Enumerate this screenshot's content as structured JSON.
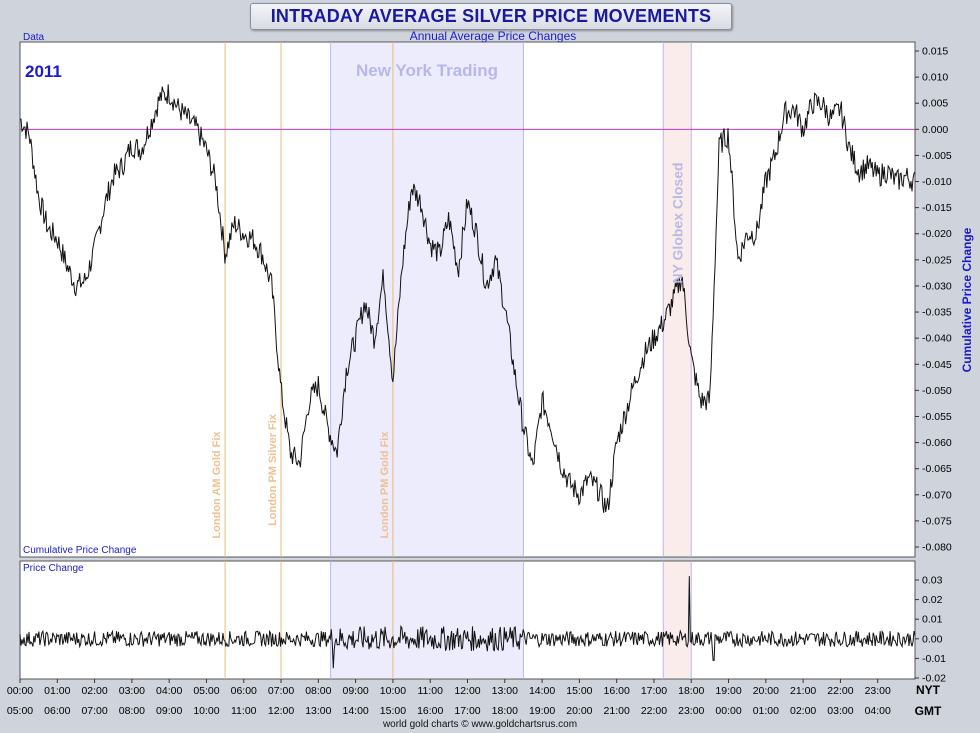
{
  "title": "INTRADAY AVERAGE SILVER PRICE MOVEMENTS",
  "subtitle": "Annual Average Price Changes",
  "data_label": "Data",
  "year_label": "2011",
  "cum_panel_label": "Cumulative Price Change",
  "right_axis_label": "Cumulative Price Change",
  "lower_panel_label": "Price Change",
  "credit": "world gold charts © www.goldchartsrus.com",
  "tz_top": "NYT",
  "tz_bottom": "GMT",
  "colors": {
    "title": "#1a1aa0",
    "label_blue": "#1a1acc",
    "zero_line": "#cc33cc",
    "fix_line": "#f0b87a",
    "ny_band": "#ececfd",
    "globex_band": "#fbecec",
    "band_edge": "#b8b8ee",
    "series": "#111111"
  },
  "chart_data": [
    {
      "type": "line",
      "series_name": "Cumulative Price Change",
      "x_unit": "hours since 00:00 NYT",
      "xlim": [
        0,
        24
      ],
      "ylim": [
        -0.08,
        0.015
      ],
      "yticks": [
        0.015,
        0.01,
        0.005,
        0.0,
        -0.005,
        -0.01,
        -0.015,
        -0.02,
        -0.025,
        -0.03,
        -0.035,
        -0.04,
        -0.045,
        -0.05,
        -0.055,
        -0.06,
        -0.065,
        -0.07,
        -0.075,
        -0.08
      ],
      "ytick_labels": [
        "0.015",
        "0.010",
        "0.005",
        "0.000",
        "-0.005",
        "-0.010",
        "-0.015",
        "-0.020",
        "-0.025",
        "-0.030",
        "-0.035",
        "-0.040",
        "-0.045",
        "-0.050",
        "-0.055",
        "-0.060",
        "-0.065",
        "-0.070",
        "-0.075",
        "-0.080"
      ],
      "x": [
        0.0,
        0.25,
        0.5,
        0.75,
        1.0,
        1.25,
        1.5,
        1.75,
        2.0,
        2.25,
        2.5,
        2.75,
        3.0,
        3.25,
        3.5,
        3.75,
        4.0,
        4.25,
        4.5,
        4.75,
        5.0,
        5.25,
        5.5,
        5.75,
        6.0,
        6.25,
        6.5,
        6.75,
        7.0,
        7.25,
        7.5,
        7.75,
        8.0,
        8.25,
        8.5,
        8.75,
        9.0,
        9.25,
        9.5,
        9.75,
        10.0,
        10.25,
        10.5,
        10.75,
        11.0,
        11.25,
        11.5,
        11.75,
        12.0,
        12.25,
        12.5,
        12.75,
        13.0,
        13.25,
        13.5,
        13.75,
        14.0,
        14.25,
        14.5,
        14.75,
        15.0,
        15.25,
        15.5,
        15.75,
        16.0,
        16.25,
        16.5,
        16.75,
        17.0,
        17.25,
        17.5,
        17.75,
        18.0,
        18.25,
        18.5,
        18.75,
        19.0,
        19.25,
        19.5,
        19.75,
        20.0,
        20.25,
        20.5,
        20.75,
        21.0,
        21.25,
        21.5,
        21.75,
        22.0,
        22.25,
        22.5,
        22.75,
        23.0,
        23.25,
        23.5,
        23.75,
        24.0
      ],
      "y": [
        0.002,
        -0.001,
        -0.013,
        -0.019,
        -0.021,
        -0.026,
        -0.03,
        -0.029,
        -0.023,
        -0.015,
        -0.009,
        -0.007,
        -0.003,
        -0.004,
        0.001,
        0.006,
        0.007,
        0.004,
        0.002,
        0.0,
        -0.004,
        -0.01,
        -0.024,
        -0.018,
        -0.02,
        -0.021,
        -0.024,
        -0.03,
        -0.05,
        -0.062,
        -0.064,
        -0.052,
        -0.049,
        -0.057,
        -0.062,
        -0.046,
        -0.04,
        -0.033,
        -0.04,
        -0.028,
        -0.048,
        -0.026,
        -0.011,
        -0.014,
        -0.022,
        -0.024,
        -0.017,
        -0.027,
        -0.014,
        -0.02,
        -0.03,
        -0.025,
        -0.034,
        -0.046,
        -0.057,
        -0.065,
        -0.052,
        -0.057,
        -0.064,
        -0.068,
        -0.07,
        -0.067,
        -0.069,
        -0.073,
        -0.06,
        -0.054,
        -0.048,
        -0.043,
        -0.04,
        -0.037,
        -0.033,
        -0.028,
        -0.044,
        -0.052,
        -0.052,
        -0.003,
        -0.001,
        -0.025,
        -0.02,
        -0.02,
        -0.01,
        -0.005,
        0.003,
        0.004,
        0.0,
        0.005,
        0.005,
        0.002,
        0.004,
        -0.004,
        -0.008,
        -0.007,
        -0.009,
        -0.008,
        -0.01,
        -0.009,
        -0.01
      ]
    },
    {
      "type": "line",
      "series_name": "Price Change",
      "x_unit": "hours since 00:00 NYT",
      "xlim": [
        0,
        24
      ],
      "ylim": [
        -0.02,
        0.04
      ],
      "yticks": [
        0.03,
        0.02,
        0.01,
        0.0,
        -0.01,
        -0.02
      ],
      "ytick_labels": [
        "0.03",
        "0.02",
        "0.01",
        "0.00",
        "-0.01",
        "-0.02"
      ],
      "spikes": [
        {
          "x": 8.4,
          "y": -0.015
        },
        {
          "x": 17.95,
          "y": 0.032
        },
        {
          "x": 18.6,
          "y": -0.011
        }
      ],
      "typical_amplitude": 0.004
    }
  ],
  "x_axis": {
    "nyt_labels": [
      "00:00",
      "01:00",
      "02:00",
      "03:00",
      "04:00",
      "05:00",
      "06:00",
      "07:00",
      "08:00",
      "09:00",
      "10:00",
      "11:00",
      "12:00",
      "13:00",
      "14:00",
      "15:00",
      "16:00",
      "17:00",
      "18:00",
      "19:00",
      "20:00",
      "21:00",
      "22:00",
      "23:00"
    ],
    "gmt_labels": [
      "05:00",
      "06:00",
      "07:00",
      "08:00",
      "09:00",
      "10:00",
      "11:00",
      "12:00",
      "13:00",
      "14:00",
      "15:00",
      "16:00",
      "17:00",
      "18:00",
      "19:00",
      "20:00",
      "21:00",
      "22:00",
      "23:00",
      "00:00",
      "01:00",
      "02:00",
      "03:00",
      "04:00"
    ]
  },
  "annotations": {
    "ny_trading": {
      "label": "New York Trading",
      "start": 8.33,
      "end": 13.5
    },
    "globex_closed": {
      "label": "NY Globex Closed",
      "start": 17.25,
      "end": 18.0
    },
    "fixes": [
      {
        "label": "London AM Gold Fix",
        "x": 5.5
      },
      {
        "label": "London PM Silver Fix",
        "x": 7.0
      },
      {
        "label": "London PM Gold Fix",
        "x": 10.0
      }
    ]
  }
}
